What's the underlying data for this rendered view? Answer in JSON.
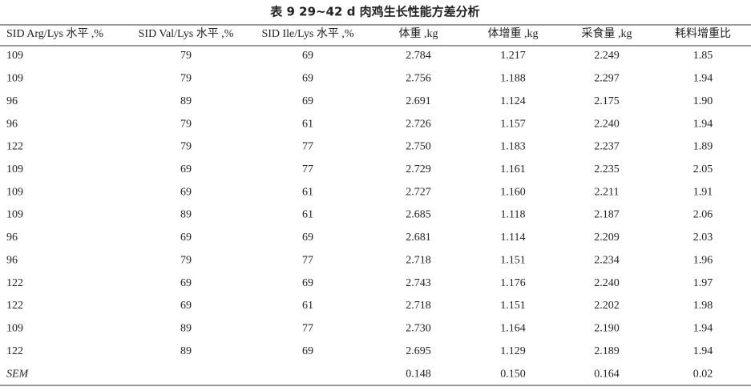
{
  "table": {
    "title": "表 9  29~42 d 肉鸡生长性能方差分析",
    "columns": [
      "SID Arg/Lys 水平 ,%",
      "SID Val/Lys 水平 ,%",
      "SID Ile/Lys 水平 ,%",
      "体重 ,kg",
      "体增重 ,kg",
      "采食量 ,kg",
      "耗料增重比"
    ],
    "rows": [
      [
        "109",
        "79",
        "69",
        "2.784",
        "1.217",
        "2.249",
        "1.85"
      ],
      [
        "109",
        "79",
        "69",
        "2.756",
        "1.188",
        "2.297",
        "1.94"
      ],
      [
        "96",
        "89",
        "69",
        "2.691",
        "1.124",
        "2.175",
        "1.90"
      ],
      [
        "96",
        "79",
        "61",
        "2.726",
        "1.157",
        "2.240",
        "1.94"
      ],
      [
        "122",
        "79",
        "77",
        "2.750",
        "1.183",
        "2.237",
        "1.89"
      ],
      [
        "109",
        "69",
        "77",
        "2.729",
        "1.161",
        "2.235",
        "2.05"
      ],
      [
        "109",
        "69",
        "61",
        "2.727",
        "1.160",
        "2.211",
        "1.91"
      ],
      [
        "109",
        "89",
        "61",
        "2.685",
        "1.118",
        "2.187",
        "2.06"
      ],
      [
        "96",
        "69",
        "69",
        "2.681",
        "1.114",
        "2.209",
        "2.03"
      ],
      [
        "96",
        "79",
        "77",
        "2.718",
        "1.151",
        "2.234",
        "1.96"
      ],
      [
        "122",
        "69",
        "69",
        "2.743",
        "1.176",
        "2.240",
        "1.97"
      ],
      [
        "122",
        "69",
        "61",
        "2.718",
        "1.151",
        "2.202",
        "1.98"
      ],
      [
        "109",
        "89",
        "77",
        "2.730",
        "1.164",
        "2.190",
        "1.94"
      ],
      [
        "122",
        "89",
        "69",
        "2.695",
        "1.129",
        "2.189",
        "1.94"
      ]
    ],
    "sem": {
      "label": "SEM",
      "values": [
        "0.148",
        "0.150",
        "0.164",
        "0.02"
      ]
    }
  }
}
